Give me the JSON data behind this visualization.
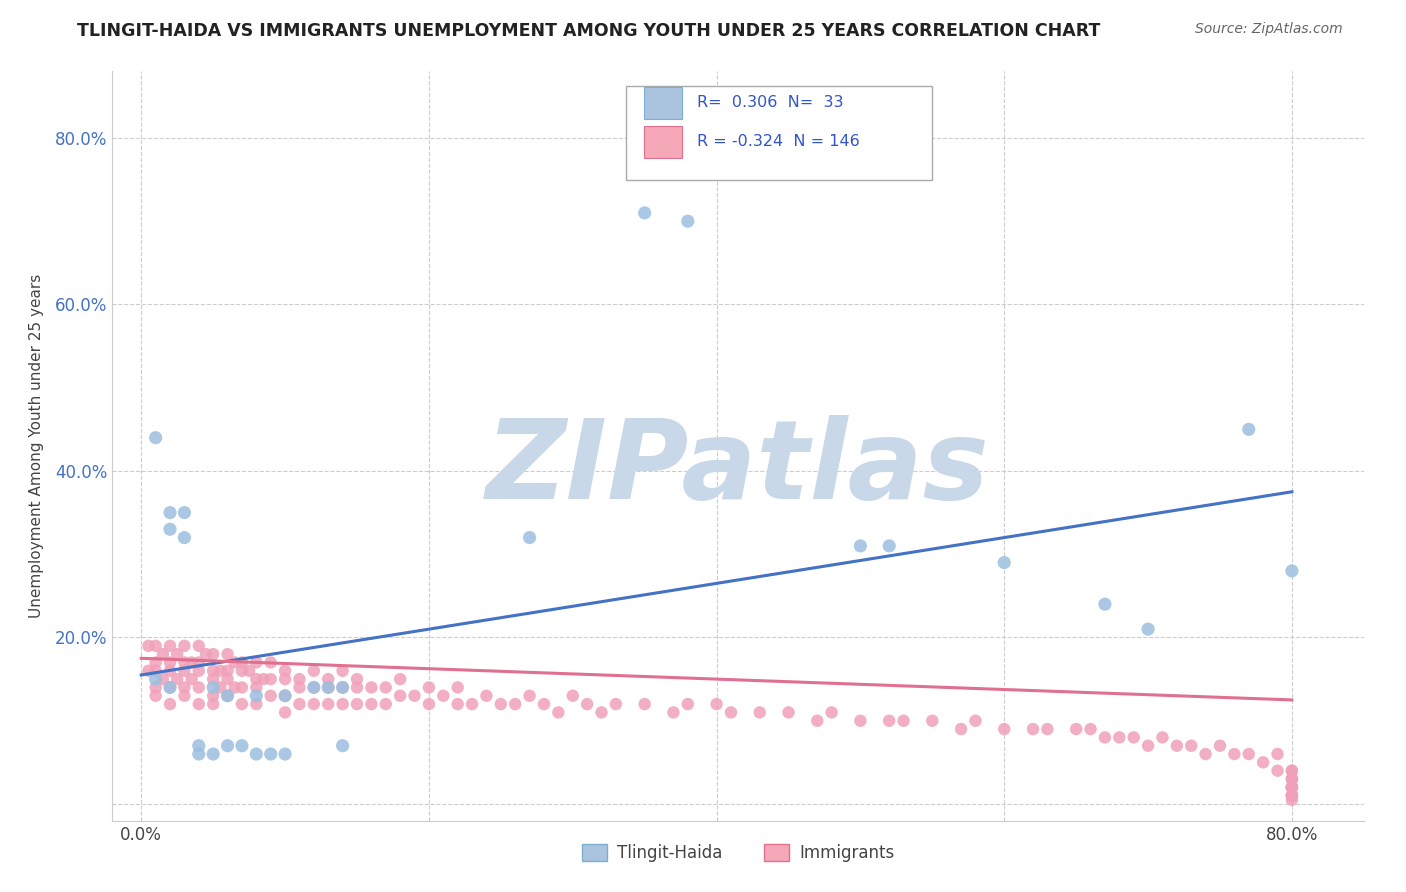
{
  "title": "TLINGIT-HAIDA VS IMMIGRANTS UNEMPLOYMENT AMONG YOUTH UNDER 25 YEARS CORRELATION CHART",
  "source": "Source: ZipAtlas.com",
  "ylabel": "Unemployment Among Youth under 25 years",
  "xlim": [
    -0.02,
    0.85
  ],
  "ylim": [
    -0.02,
    0.88
  ],
  "x_ticks": [
    0.0,
    0.8
  ],
  "x_tick_labels": [
    "0.0%",
    "80.0%"
  ],
  "y_ticks": [
    0.2,
    0.4,
    0.6,
    0.8
  ],
  "y_tick_labels": [
    "20.0%",
    "40.0%",
    "60.0%",
    "80.0%"
  ],
  "tlingit_haida_color": "#9bbfe0",
  "tlingit_haida_edge": "#7aafd4",
  "immigrants_color": "#f0a0b8",
  "immigrants_edge": "#e07090",
  "tlingit_trend_color": "#4472c4",
  "immigrants_trend_color": "#e07090",
  "watermark": "ZIPatlas",
  "watermark_color": "#c8d8e8",
  "legend_box_color": "#aac4e0",
  "legend_pink_color": "#f4a8b8",
  "tlingit_x": [
    0.01,
    0.01,
    0.02,
    0.02,
    0.02,
    0.03,
    0.03,
    0.04,
    0.04,
    0.05,
    0.05,
    0.06,
    0.06,
    0.07,
    0.08,
    0.08,
    0.09,
    0.1,
    0.1,
    0.12,
    0.13,
    0.14,
    0.14,
    0.27,
    0.35,
    0.38,
    0.5,
    0.52,
    0.6,
    0.67,
    0.7,
    0.77,
    0.8
  ],
  "tlingit_y": [
    0.44,
    0.15,
    0.35,
    0.33,
    0.14,
    0.35,
    0.32,
    0.07,
    0.06,
    0.14,
    0.06,
    0.13,
    0.07,
    0.07,
    0.13,
    0.06,
    0.06,
    0.13,
    0.06,
    0.14,
    0.14,
    0.14,
    0.07,
    0.32,
    0.71,
    0.7,
    0.31,
    0.31,
    0.29,
    0.24,
    0.21,
    0.45,
    0.28
  ],
  "immigrants_x": [
    0.005,
    0.005,
    0.01,
    0.01,
    0.01,
    0.01,
    0.01,
    0.015,
    0.015,
    0.02,
    0.02,
    0.02,
    0.02,
    0.02,
    0.025,
    0.025,
    0.03,
    0.03,
    0.03,
    0.03,
    0.03,
    0.035,
    0.035,
    0.04,
    0.04,
    0.04,
    0.04,
    0.04,
    0.045,
    0.05,
    0.05,
    0.05,
    0.05,
    0.05,
    0.055,
    0.055,
    0.06,
    0.06,
    0.06,
    0.06,
    0.065,
    0.065,
    0.07,
    0.07,
    0.07,
    0.07,
    0.075,
    0.08,
    0.08,
    0.08,
    0.08,
    0.085,
    0.09,
    0.09,
    0.09,
    0.1,
    0.1,
    0.1,
    0.1,
    0.11,
    0.11,
    0.11,
    0.12,
    0.12,
    0.12,
    0.13,
    0.13,
    0.13,
    0.14,
    0.14,
    0.14,
    0.15,
    0.15,
    0.15,
    0.16,
    0.16,
    0.17,
    0.17,
    0.18,
    0.18,
    0.19,
    0.2,
    0.2,
    0.21,
    0.22,
    0.22,
    0.23,
    0.24,
    0.25,
    0.26,
    0.27,
    0.28,
    0.29,
    0.3,
    0.31,
    0.32,
    0.33,
    0.35,
    0.37,
    0.38,
    0.4,
    0.41,
    0.43,
    0.45,
    0.47,
    0.48,
    0.5,
    0.52,
    0.53,
    0.55,
    0.57,
    0.58,
    0.6,
    0.62,
    0.63,
    0.65,
    0.66,
    0.67,
    0.68,
    0.69,
    0.7,
    0.71,
    0.72,
    0.73,
    0.74,
    0.75,
    0.76,
    0.77,
    0.78,
    0.79,
    0.79,
    0.8,
    0.8,
    0.8,
    0.8,
    0.8,
    0.8,
    0.8,
    0.8,
    0.8,
    0.8,
    0.8,
    0.8,
    0.8,
    0.8,
    0.8
  ],
  "immigrants_y": [
    0.19,
    0.16,
    0.19,
    0.17,
    0.16,
    0.14,
    0.13,
    0.18,
    0.15,
    0.19,
    0.17,
    0.16,
    0.14,
    0.12,
    0.18,
    0.15,
    0.19,
    0.17,
    0.16,
    0.14,
    0.13,
    0.17,
    0.15,
    0.19,
    0.17,
    0.16,
    0.14,
    0.12,
    0.18,
    0.18,
    0.16,
    0.15,
    0.13,
    0.12,
    0.16,
    0.14,
    0.18,
    0.16,
    0.15,
    0.13,
    0.17,
    0.14,
    0.17,
    0.16,
    0.14,
    0.12,
    0.16,
    0.17,
    0.15,
    0.14,
    0.12,
    0.15,
    0.17,
    0.15,
    0.13,
    0.16,
    0.15,
    0.13,
    0.11,
    0.15,
    0.14,
    0.12,
    0.16,
    0.14,
    0.12,
    0.15,
    0.14,
    0.12,
    0.16,
    0.14,
    0.12,
    0.15,
    0.14,
    0.12,
    0.14,
    0.12,
    0.14,
    0.12,
    0.15,
    0.13,
    0.13,
    0.14,
    0.12,
    0.13,
    0.14,
    0.12,
    0.12,
    0.13,
    0.12,
    0.12,
    0.13,
    0.12,
    0.11,
    0.13,
    0.12,
    0.11,
    0.12,
    0.12,
    0.11,
    0.12,
    0.12,
    0.11,
    0.11,
    0.11,
    0.1,
    0.11,
    0.1,
    0.1,
    0.1,
    0.1,
    0.09,
    0.1,
    0.09,
    0.09,
    0.09,
    0.09,
    0.09,
    0.08,
    0.08,
    0.08,
    0.07,
    0.08,
    0.07,
    0.07,
    0.06,
    0.07,
    0.06,
    0.06,
    0.05,
    0.06,
    0.04,
    0.04,
    0.03,
    0.04,
    0.03,
    0.02,
    0.03,
    0.02,
    0.01,
    0.02,
    0.01,
    0.02,
    0.01,
    0.02,
    0.01,
    0.005
  ],
  "tlingit_trend_x": [
    0.0,
    0.8
  ],
  "tlingit_trend_y": [
    0.155,
    0.375
  ],
  "immigrants_trend_x": [
    0.0,
    0.8
  ],
  "immigrants_trend_y": [
    0.175,
    0.125
  ]
}
